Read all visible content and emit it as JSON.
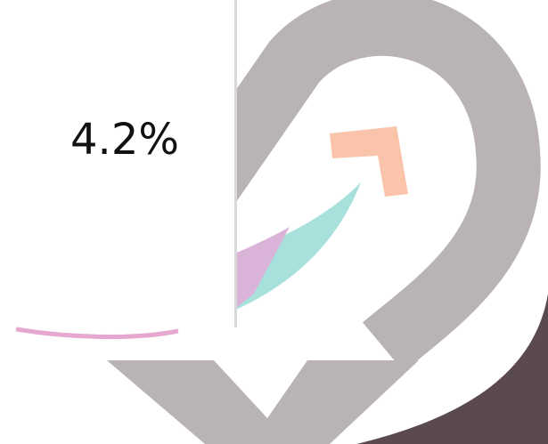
{
  "panel": {
    "value_text": "4.2%"
  }
}
